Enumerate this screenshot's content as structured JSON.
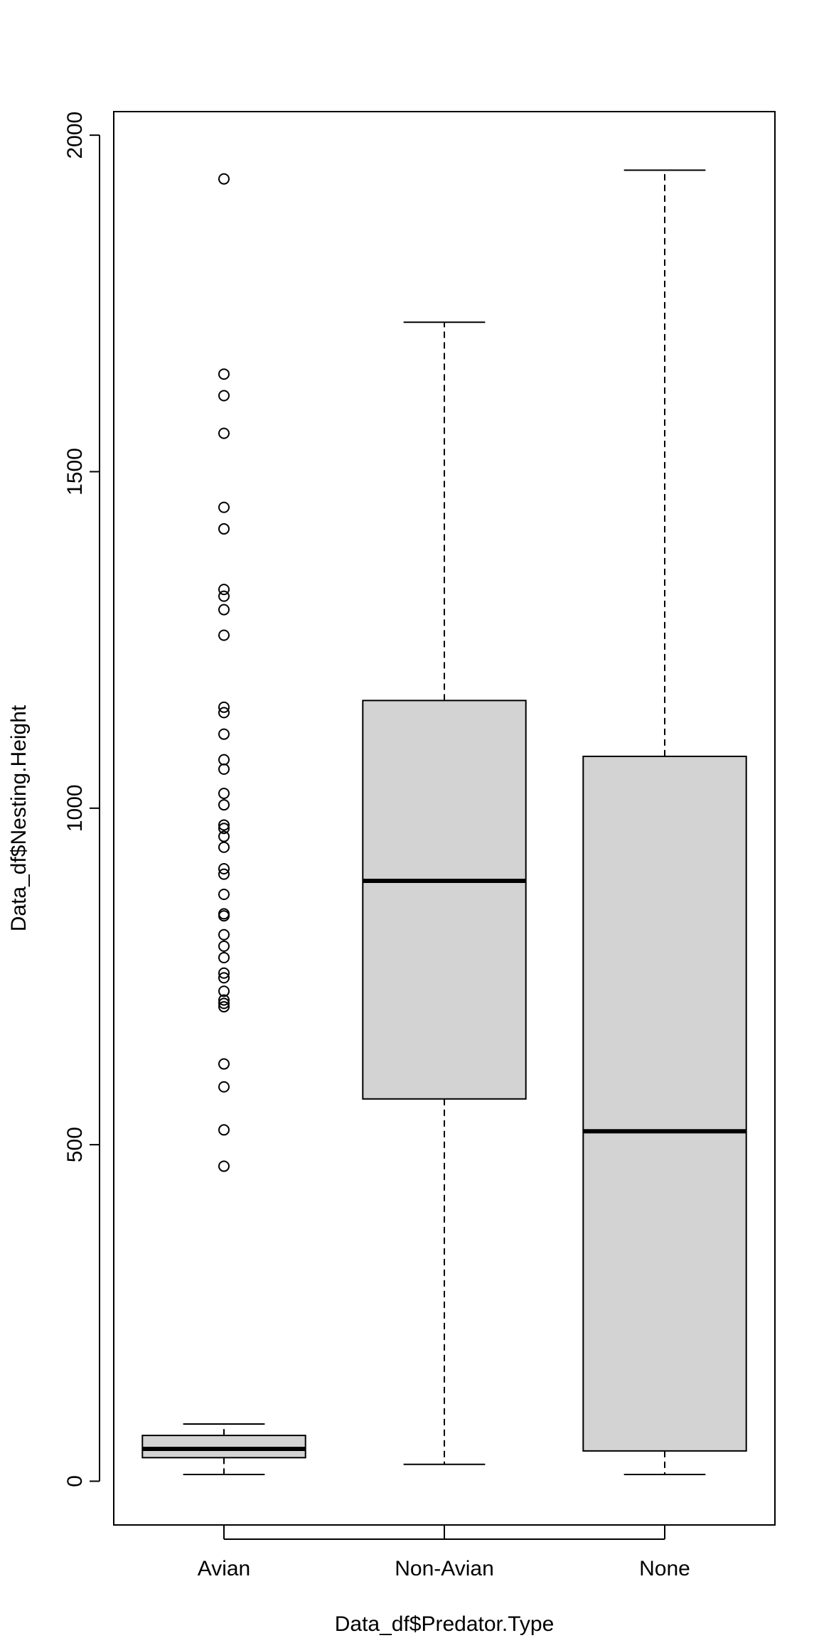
{
  "chart_data": {
    "type": "boxplot",
    "title": "",
    "xlabel": "Data_df$Predator.Type",
    "ylabel": "Data_df$Nesting.Height",
    "ylim": [
      -65,
      2035
    ],
    "yticks": [
      0,
      500,
      1000,
      1500,
      2000
    ],
    "grid": false,
    "legend": "none",
    "colors": {
      "box_fill": "#d3d3d3",
      "stroke": "#000000"
    },
    "categories": [
      "Avian",
      "Non-Avian",
      "None"
    ],
    "boxes": [
      {
        "category": "Avian",
        "whisker_low": 10,
        "q1": 35,
        "median": 48,
        "q3": 68,
        "whisker_high": 85,
        "outliers": [
          468,
          522,
          586,
          620,
          705,
          710,
          715,
          728,
          748,
          755,
          778,
          795,
          812,
          840,
          843,
          872,
          902,
          910,
          942,
          958,
          970,
          975,
          1005,
          1022,
          1058,
          1072,
          1110,
          1142,
          1150,
          1257,
          1295,
          1315,
          1325,
          1415,
          1447,
          1557,
          1613,
          1645,
          1935
        ]
      },
      {
        "category": "Non-Avian",
        "whisker_low": 25,
        "q1": 568,
        "median": 892,
        "q3": 1160,
        "whisker_high": 1722
      },
      {
        "category": "None",
        "whisker_low": 10,
        "q1": 45,
        "median": 520,
        "q3": 1077,
        "whisker_high": 1948
      }
    ]
  }
}
